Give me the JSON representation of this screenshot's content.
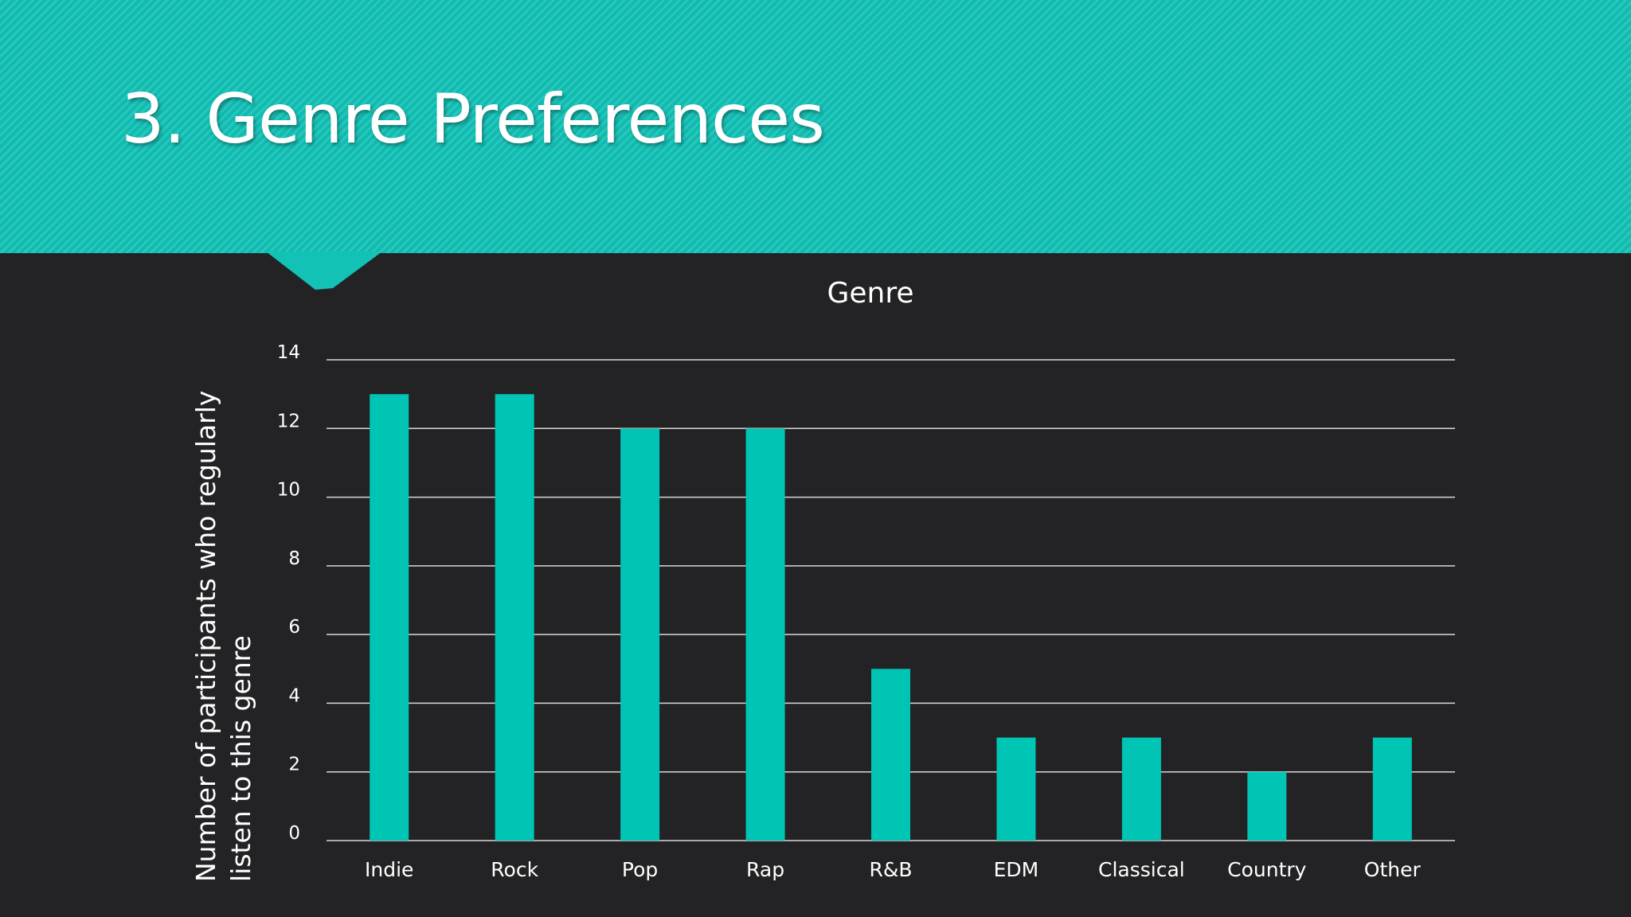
{
  "slide": {
    "title": "3. Genre Preferences"
  },
  "colors": {
    "header": "#12c2b6",
    "background": "#232325",
    "bar": "#00c4b4",
    "gridline": "#d8d8d8",
    "text": "#ffffff"
  },
  "chart_data": {
    "type": "bar",
    "title": "Genre",
    "xlabel": "",
    "ylabel": "Number of participants who regularly listen to this genre",
    "ylabel_lines": [
      "Number of participants who regularly",
      "listen to this genre"
    ],
    "categories": [
      "Indie",
      "Rock",
      "Pop",
      "Rap",
      "R&B",
      "EDM",
      "Classical",
      "Country",
      "Other"
    ],
    "values": [
      13,
      13,
      12,
      12,
      5,
      3,
      3,
      2,
      3
    ],
    "ylim": [
      0,
      14
    ],
    "yticks": [
      0,
      2,
      4,
      6,
      8,
      10,
      12,
      14
    ],
    "grid": true,
    "legend": "none"
  }
}
